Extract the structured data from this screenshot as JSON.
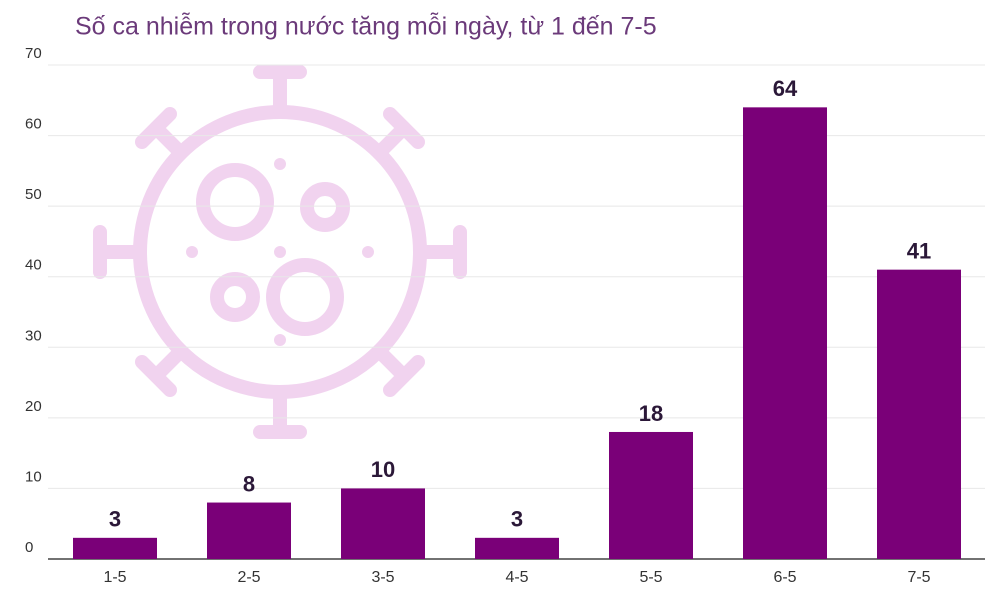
{
  "chart_data": {
    "type": "bar",
    "title": "Số ca nhiễm trong nước tăng mỗi ngày, từ 1 đến 7-5",
    "categories": [
      "1-5",
      "2-5",
      "3-5",
      "4-5",
      "5-5",
      "6-5",
      "7-5"
    ],
    "values": [
      3,
      8,
      10,
      3,
      18,
      64,
      41
    ],
    "color": "#7a0078",
    "ylim": [
      0,
      70
    ],
    "yticks": [
      0,
      10,
      20,
      30,
      40,
      50,
      60,
      70
    ],
    "grid": true
  }
}
